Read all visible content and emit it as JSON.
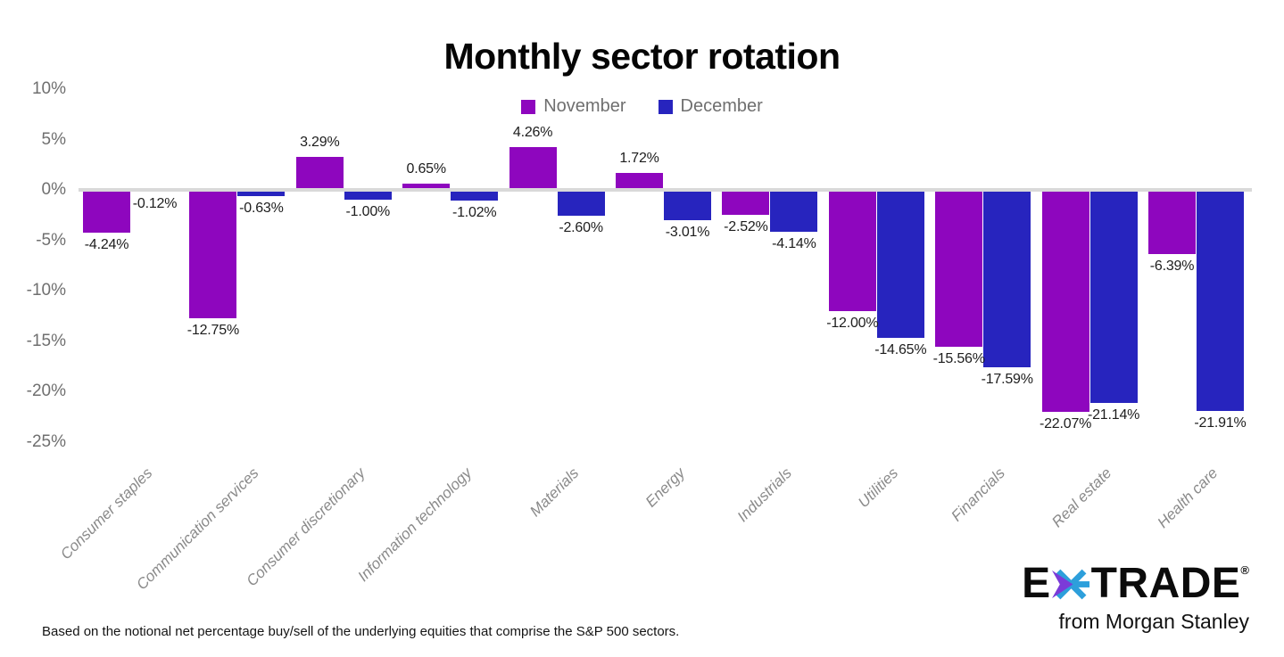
{
  "title": "Monthly sector rotation",
  "footnote": "Based on the notional net percentage buy/sell of the underlying equities that comprise the S&P 500 sectors.",
  "logo": {
    "e": "E",
    "trade": "TRADE",
    "reg": "®",
    "tagline": "from Morgan Stanley",
    "star_purple": "#7b3bd8",
    "star_blue": "#2d9fdb"
  },
  "colors": {
    "november": "#8e06be",
    "december": "#2724be",
    "zero_line": "#d9d9d9",
    "axis_text": "#6f6f6f",
    "category_text": "#8a8a8a",
    "value_text": "#1d1d1d"
  },
  "chart_data": {
    "type": "bar",
    "title": "Monthly sector rotation",
    "categories": [
      "Consumer staples",
      "Communication services",
      "Consumer discretionary",
      "Information technology",
      "Materials",
      "Energy",
      "Industrials",
      "Utilities",
      "Financials",
      "Real estate",
      "Health care"
    ],
    "series": [
      {
        "name": "November",
        "color": "#8e06be",
        "values": [
          -4.24,
          -12.75,
          3.29,
          0.65,
          4.26,
          1.72,
          -2.52,
          -12.0,
          -15.56,
          -22.07,
          -6.39
        ]
      },
      {
        "name": "December",
        "color": "#2724be",
        "values": [
          -0.12,
          -0.63,
          -1.0,
          -1.02,
          -2.6,
          -3.01,
          -4.14,
          -14.65,
          -17.59,
          -21.14,
          -21.91
        ]
      }
    ],
    "value_label_format": "two-decimal percent",
    "ytick_values": [
      10,
      5,
      0,
      -5,
      -10,
      -15,
      -20,
      -25
    ],
    "ytick_labels": [
      "10%",
      "5%",
      "0%",
      "-5%",
      "-10%",
      "-15%",
      "-20%",
      "-25%"
    ],
    "ylim": [
      -25,
      10
    ],
    "grid": false,
    "legend_position": "top-center"
  }
}
